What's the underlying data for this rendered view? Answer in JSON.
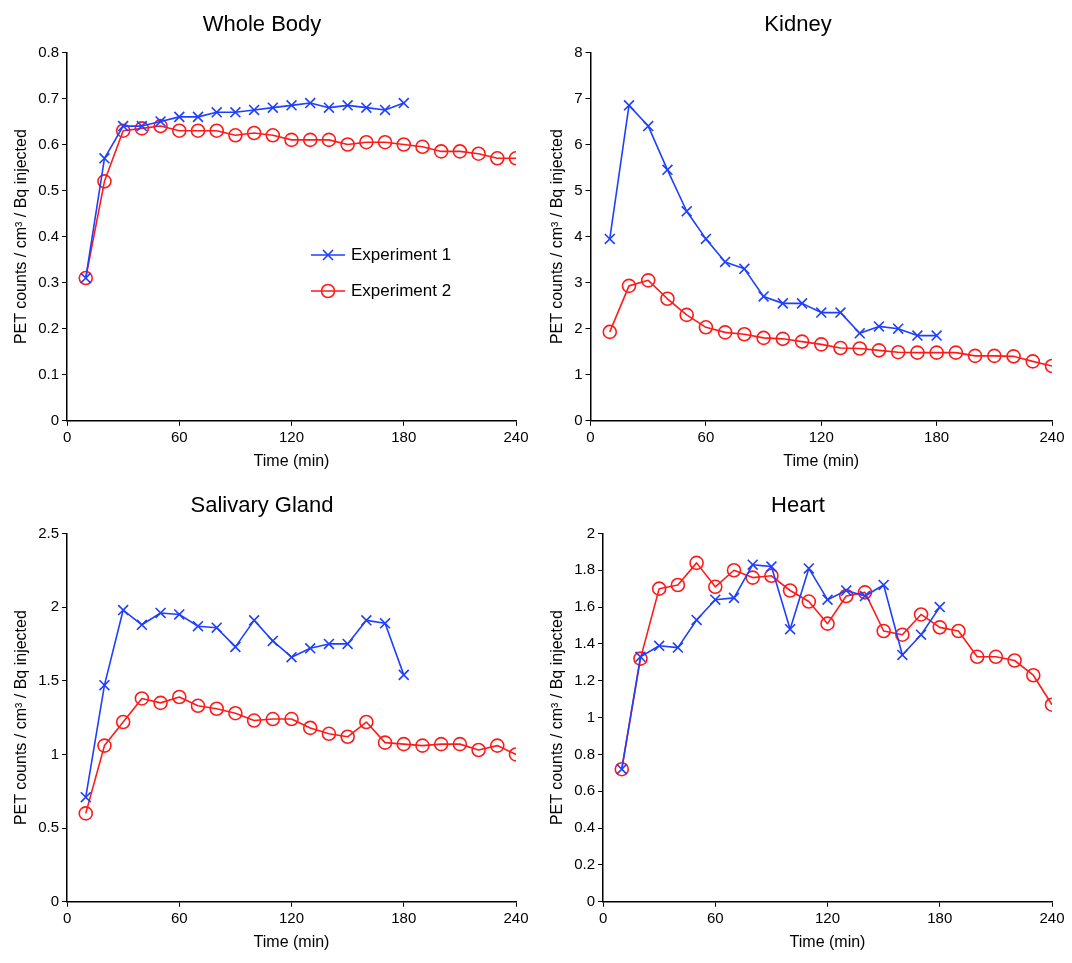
{
  "chart_data": [
    {
      "type": "line",
      "title": "Whole Body",
      "xlabel": "Time (min)",
      "ylabel": "PET counts / cm³ / Bq injected",
      "xlim": [
        0,
        240
      ],
      "xticks": [
        0,
        60,
        120,
        180,
        240
      ],
      "ylim": [
        0,
        0.8
      ],
      "yticks": [
        0,
        0.1,
        0.2,
        0.3,
        0.4,
        0.5,
        0.6,
        0.7,
        0.8
      ],
      "grid": false,
      "legend": "right",
      "line_style": "solid",
      "series": [
        {
          "name": "Experiment 1",
          "color": "#1f3fff",
          "marker": "cross",
          "x": [
            10,
            20,
            30,
            40,
            50,
            60,
            70,
            80,
            90,
            100,
            110,
            120,
            130,
            140,
            150,
            160,
            170,
            180
          ],
          "values": [
            0.31,
            0.57,
            0.64,
            0.64,
            0.65,
            0.66,
            0.66,
            0.67,
            0.67,
            0.675,
            0.68,
            0.685,
            0.69,
            0.68,
            0.685,
            0.68,
            0.675,
            0.69
          ]
        },
        {
          "name": "Experiment 2",
          "color": "#ff1a1a",
          "marker": "circle",
          "x": [
            10,
            20,
            30,
            40,
            50,
            60,
            70,
            80,
            90,
            100,
            110,
            120,
            130,
            140,
            150,
            160,
            170,
            180,
            190,
            200,
            210,
            220,
            230,
            240
          ],
          "values": [
            0.31,
            0.52,
            0.63,
            0.635,
            0.64,
            0.63,
            0.63,
            0.63,
            0.62,
            0.625,
            0.62,
            0.61,
            0.61,
            0.61,
            0.6,
            0.605,
            0.605,
            0.6,
            0.595,
            0.585,
            0.585,
            0.58,
            0.57,
            0.57
          ]
        }
      ]
    },
    {
      "type": "line",
      "title": "Kidney",
      "xlabel": "Time (min)",
      "ylabel": "PET counts / cm³ / Bq injected",
      "xlim": [
        0,
        240
      ],
      "xticks": [
        0,
        60,
        120,
        180,
        240
      ],
      "ylim": [
        0,
        8
      ],
      "yticks": [
        0,
        1,
        2,
        3,
        4,
        5,
        6,
        7,
        8
      ],
      "grid": false,
      "legend": false,
      "line_style": "solid",
      "series": [
        {
          "color": "#1f3fff",
          "marker": "cross",
          "x": [
            10,
            20,
            30,
            40,
            50,
            60,
            70,
            80,
            90,
            100,
            110,
            120,
            130,
            140,
            150,
            160,
            170,
            180
          ],
          "values": [
            3.95,
            6.85,
            6.4,
            5.45,
            4.55,
            3.95,
            3.45,
            3.3,
            2.7,
            2.55,
            2.55,
            2.35,
            2.35,
            1.9,
            2.05,
            2.0,
            1.85,
            1.85
          ]
        },
        {
          "color": "#ff1a1a",
          "marker": "circle",
          "x": [
            10,
            20,
            30,
            40,
            50,
            60,
            70,
            80,
            90,
            100,
            110,
            120,
            130,
            140,
            150,
            160,
            170,
            180,
            190,
            200,
            210,
            220,
            230,
            240
          ],
          "values": [
            1.93,
            2.93,
            3.05,
            2.65,
            2.3,
            2.03,
            1.92,
            1.88,
            1.8,
            1.78,
            1.72,
            1.66,
            1.58,
            1.57,
            1.53,
            1.49,
            1.48,
            1.48,
            1.48,
            1.41,
            1.41,
            1.4,
            1.29,
            1.19
          ]
        }
      ]
    },
    {
      "type": "line",
      "title": "Salivary Gland",
      "xlabel": "Time (min)",
      "ylabel": "PET counts / cm³ / Bq injected",
      "xlim": [
        0,
        240
      ],
      "xticks": [
        0,
        60,
        120,
        180,
        240
      ],
      "ylim": [
        0,
        2.5
      ],
      "yticks": [
        0,
        0.5,
        1,
        1.5,
        2,
        2.5
      ],
      "grid": false,
      "legend": false,
      "line_style": "solid",
      "series": [
        {
          "color": "#1f3fff",
          "marker": "cross",
          "x": [
            10,
            20,
            30,
            40,
            50,
            60,
            70,
            80,
            90,
            100,
            110,
            120,
            130,
            140,
            150,
            160,
            170,
            180
          ],
          "values": [
            0.71,
            1.47,
            1.98,
            1.88,
            1.96,
            1.95,
            1.87,
            1.86,
            1.73,
            1.91,
            1.77,
            1.66,
            1.72,
            1.75,
            1.75,
            1.91,
            1.89,
            1.54
          ]
        },
        {
          "color": "#ff1a1a",
          "marker": "circle",
          "x": [
            10,
            20,
            30,
            40,
            50,
            60,
            70,
            80,
            90,
            100,
            110,
            120,
            130,
            140,
            150,
            160,
            170,
            180,
            190,
            200,
            210,
            220,
            230,
            240
          ],
          "values": [
            0.6,
            1.06,
            1.22,
            1.38,
            1.35,
            1.39,
            1.33,
            1.31,
            1.28,
            1.23,
            1.24,
            1.24,
            1.18,
            1.14,
            1.12,
            1.22,
            1.08,
            1.07,
            1.06,
            1.07,
            1.07,
            1.03,
            1.06,
            1.0
          ]
        }
      ]
    },
    {
      "type": "line",
      "title": "Heart",
      "xlabel": "Time (min)",
      "ylabel": "PET counts / cm³ / Bq injected",
      "xlim": [
        0,
        240
      ],
      "xticks": [
        0,
        60,
        120,
        180,
        240
      ],
      "ylim": [
        0,
        2
      ],
      "yticks": [
        0,
        0.2,
        0.4,
        0.6,
        0.8,
        1,
        1.2,
        1.4,
        1.6,
        1.8,
        2
      ],
      "grid": false,
      "legend": false,
      "line_style": "solid",
      "series": [
        {
          "color": "#1f3fff",
          "marker": "cross",
          "x": [
            10,
            20,
            30,
            40,
            50,
            60,
            70,
            80,
            90,
            100,
            110,
            120,
            130,
            140,
            150,
            160,
            170,
            180
          ],
          "values": [
            0.72,
            1.33,
            1.39,
            1.38,
            1.53,
            1.64,
            1.65,
            1.83,
            1.82,
            1.48,
            1.81,
            1.64,
            1.69,
            1.66,
            1.72,
            1.34,
            1.45,
            1.6
          ]
        },
        {
          "color": "#ff1a1a",
          "marker": "circle",
          "x": [
            10,
            20,
            30,
            40,
            50,
            60,
            70,
            80,
            90,
            100,
            110,
            120,
            130,
            140,
            150,
            160,
            170,
            180,
            190,
            200,
            210,
            220,
            230,
            240
          ],
          "values": [
            0.72,
            1.32,
            1.7,
            1.72,
            1.84,
            1.71,
            1.8,
            1.76,
            1.77,
            1.69,
            1.63,
            1.51,
            1.66,
            1.68,
            1.47,
            1.45,
            1.56,
            1.49,
            1.47,
            1.33,
            1.33,
            1.31,
            1.23,
            1.07
          ]
        }
      ]
    }
  ]
}
